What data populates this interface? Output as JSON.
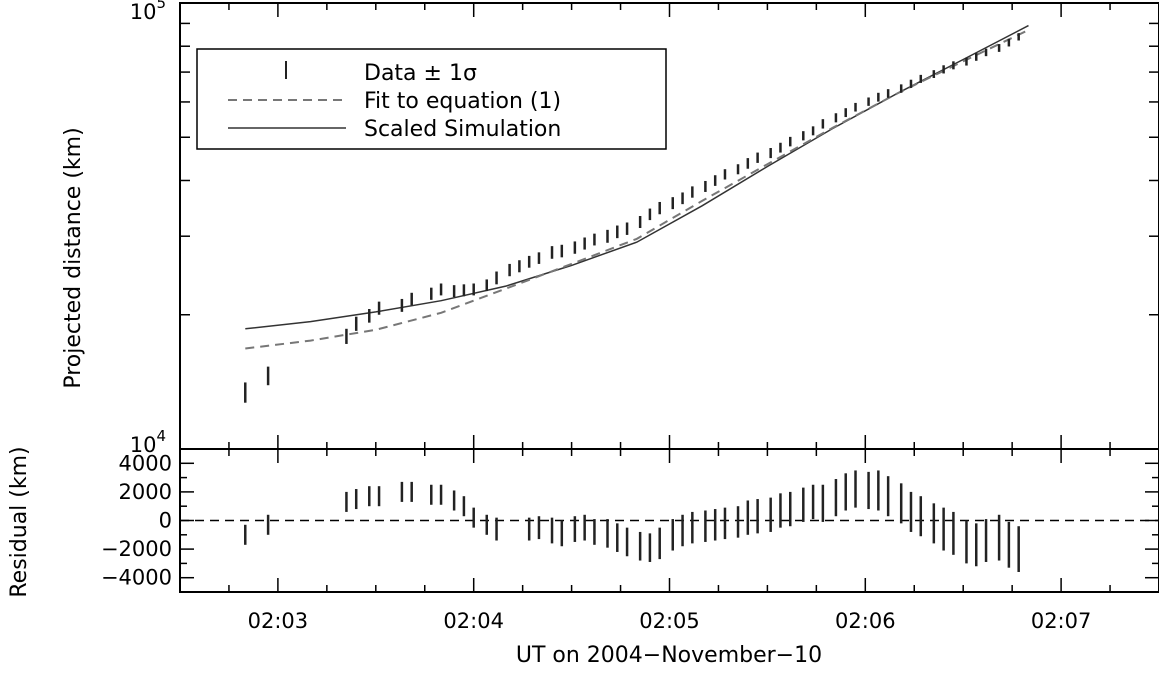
{
  "chart_data": [
    {
      "type": "scatter",
      "panel": "top",
      "ylabel": "Projected distance (km)",
      "yscale": "log",
      "ylim": [
        10000,
        100000
      ],
      "xlim": [
        "02:02:30",
        "02:07:30"
      ],
      "y_tick_labels": [
        {
          "value": 10000,
          "base": "10",
          "exp": "4"
        },
        {
          "value": 100000,
          "base": "10",
          "exp": "5"
        }
      ],
      "legend": {
        "placement": "top-left",
        "entries": [
          {
            "label": "Data ± 1σ",
            "style": "errorbar"
          },
          {
            "label": "Fit to equation (1)",
            "style": "dashed"
          },
          {
            "label": "Scaled Simulation",
            "style": "solid"
          }
        ]
      },
      "series": [
        {
          "name": "Data ± 1σ",
          "style": "errorbar",
          "x": [
            "02:02:50",
            "02:02:57",
            "02:03:21",
            "02:03:24",
            "02:03:28",
            "02:03:31",
            "02:03:38",
            "02:03:41",
            "02:03:47",
            "02:03:50",
            "02:03:54",
            "02:03:57",
            "02:04:00",
            "02:04:04",
            "02:04:07",
            "02:04:11",
            "02:04:14",
            "02:04:17",
            "02:04:20",
            "02:04:24",
            "02:04:27",
            "02:04:31",
            "02:04:34",
            "02:04:37",
            "02:04:41",
            "02:04:44",
            "02:04:47",
            "02:04:51",
            "02:04:54",
            "02:04:57",
            "02:05:01",
            "02:05:04",
            "02:05:07",
            "02:05:11",
            "02:05:14",
            "02:05:17",
            "02:05:21",
            "02:05:24",
            "02:05:27",
            "02:05:31",
            "02:05:34",
            "02:05:37",
            "02:05:41",
            "02:05:44",
            "02:05:47",
            "02:05:51",
            "02:05:54",
            "02:05:57",
            "02:06:01",
            "02:06:04",
            "02:06:07",
            "02:06:11",
            "02:06:14",
            "02:06:17",
            "02:06:21",
            "02:06:24",
            "02:06:27",
            "02:06:31",
            "02:06:34",
            "02:06:37",
            "02:06:41",
            "02:06:44",
            "02:06:47"
          ],
          "y": [
            13400,
            14600,
            17900,
            19100,
            19900,
            20700,
            21000,
            21700,
            22300,
            22800,
            22600,
            22700,
            22800,
            23300,
            24200,
            25200,
            25700,
            26300,
            26800,
            27600,
            27800,
            28300,
            28900,
            29500,
            30000,
            30700,
            31200,
            32300,
            33600,
            34700,
            35600,
            36500,
            37700,
            38800,
            40000,
            41300,
            42400,
            43700,
            45000,
            46100,
            47400,
            48900,
            50400,
            51700,
            53600,
            55300,
            56800,
            58400,
            60100,
            61500,
            62700,
            64300,
            65900,
            67600,
            69300,
            71000,
            72500,
            73900,
            75700,
            77500,
            79300,
            81500,
            84000
          ],
          "yerr": [
            700,
            700,
            700,
            700,
            700,
            700,
            700,
            700,
            700,
            700,
            700,
            700,
            700,
            700,
            800,
            800,
            800,
            800,
            800,
            900,
            900,
            900,
            900,
            900,
            1000,
            1000,
            1000,
            1000,
            1000,
            1100,
            1100,
            1100,
            1100,
            1100,
            1100,
            1100,
            1100,
            1200,
            1200,
            1200,
            1200,
            1200,
            1200,
            1200,
            1300,
            1300,
            1300,
            1300,
            1300,
            1400,
            1400,
            1400,
            1400,
            1400,
            1400,
            1500,
            1500,
            1500,
            1500,
            1500,
            1600,
            1600,
            1600
          ]
        },
        {
          "name": "Fit to equation (1)",
          "style": "dashed",
          "x": [
            "02:02:50",
            "02:03:10",
            "02:03:30",
            "02:03:50",
            "02:04:10",
            "02:04:30",
            "02:04:50",
            "02:05:10",
            "02:05:30",
            "02:05:50",
            "02:06:10",
            "02:06:30",
            "02:06:50"
          ],
          "y": [
            16800,
            17500,
            18500,
            20200,
            22900,
            26000,
            29600,
            36000,
            43500,
            52500,
            62800,
            74000,
            87000
          ]
        },
        {
          "name": "Scaled Simulation",
          "style": "solid",
          "x": [
            "02:02:50",
            "02:03:10",
            "02:03:30",
            "02:03:50",
            "02:04:10",
            "02:04:30",
            "02:04:50",
            "02:05:10",
            "02:05:30",
            "02:05:50",
            "02:06:10",
            "02:06:30",
            "02:06:50"
          ],
          "y": [
            18600,
            19300,
            20300,
            21500,
            23200,
            25800,
            29100,
            35100,
            43000,
            52300,
            62800,
            74700,
            89000
          ]
        }
      ]
    },
    {
      "type": "scatter",
      "panel": "bottom",
      "ylabel": "Residual (km)",
      "xlabel": "UT on 2004−November−10",
      "ylim": [
        -5000,
        5000
      ],
      "xlim": [
        "02:02:30",
        "02:07:30"
      ],
      "y_ticks": [
        -4000,
        -2000,
        0,
        2000,
        4000
      ],
      "y_tick_labels": [
        "−4000",
        "−2000",
        "0",
        "2000",
        "4000"
      ],
      "x_ticks": [
        "02:03:00",
        "02:04:00",
        "02:05:00",
        "02:06:00",
        "02:07:00"
      ],
      "x_tick_labels": [
        "02:03",
        "02:04",
        "02:05",
        "02:06",
        "02:07"
      ],
      "zero_line": "dashed",
      "series": [
        {
          "name": "Residual",
          "style": "errorbar",
          "x": [
            "02:02:50",
            "02:02:57",
            "02:03:21",
            "02:03:24",
            "02:03:28",
            "02:03:31",
            "02:03:38",
            "02:03:41",
            "02:03:47",
            "02:03:50",
            "02:03:54",
            "02:03:57",
            "02:04:00",
            "02:04:04",
            "02:04:07",
            "02:04:17",
            "02:04:20",
            "02:04:24",
            "02:04:27",
            "02:04:31",
            "02:04:34",
            "02:04:37",
            "02:04:41",
            "02:04:44",
            "02:04:47",
            "02:04:51",
            "02:04:54",
            "02:04:57",
            "02:05:01",
            "02:05:04",
            "02:05:07",
            "02:05:11",
            "02:05:14",
            "02:05:17",
            "02:05:21",
            "02:05:24",
            "02:05:27",
            "02:05:31",
            "02:05:34",
            "02:05:37",
            "02:05:41",
            "02:05:44",
            "02:05:47",
            "02:05:51",
            "02:05:54",
            "02:05:57",
            "02:06:01",
            "02:06:04",
            "02:06:07",
            "02:06:11",
            "02:06:14",
            "02:06:17",
            "02:06:21",
            "02:06:24",
            "02:06:27",
            "02:06:31",
            "02:06:34",
            "02:06:37",
            "02:06:41",
            "02:06:44",
            "02:06:47"
          ],
          "y": [
            -1000,
            -300,
            1300,
            1500,
            1700,
            1700,
            2000,
            2000,
            1800,
            1800,
            1400,
            1000,
            200,
            -300,
            -600,
            -600,
            -500,
            -700,
            -900,
            -600,
            -500,
            -800,
            -900,
            -1200,
            -1500,
            -1800,
            -1900,
            -1600,
            -1000,
            -700,
            -500,
            -400,
            -300,
            -200,
            -100,
            200,
            300,
            400,
            700,
            800,
            1100,
            1300,
            1200,
            1600,
            2000,
            2200,
            2100,
            2100,
            1700,
            1200,
            600,
            300,
            -200,
            -600,
            -900,
            -1500,
            -1700,
            -1400,
            -1200,
            -1700,
            -2000
          ],
          "yerr": [
            700,
            700,
            700,
            700,
            700,
            700,
            700,
            700,
            700,
            700,
            700,
            700,
            700,
            700,
            800,
            800,
            800,
            900,
            900,
            900,
            900,
            900,
            1000,
            1000,
            1000,
            1000,
            1000,
            1100,
            1100,
            1100,
            1100,
            1100,
            1100,
            1100,
            1100,
            1200,
            1200,
            1200,
            1200,
            1200,
            1200,
            1200,
            1300,
            1300,
            1300,
            1300,
            1300,
            1400,
            1400,
            1400,
            1400,
            1400,
            1400,
            1500,
            1500,
            1500,
            1500,
            1500,
            1600,
            1600,
            1600
          ]
        }
      ]
    }
  ],
  "colors": {
    "data": "#222222",
    "fit": "#777777",
    "simulation": "#333333",
    "axes": "#000000"
  }
}
